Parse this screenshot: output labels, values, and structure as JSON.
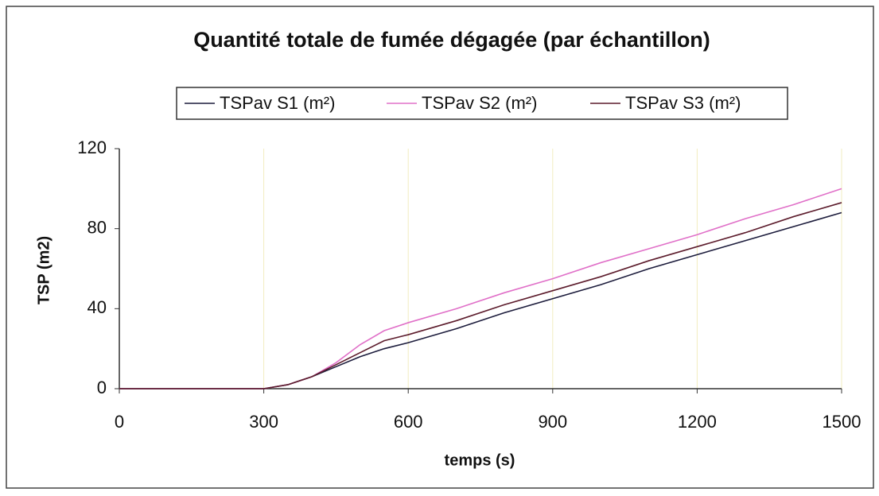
{
  "chart_data": {
    "type": "line",
    "title": "Quantité totale de fumée dégagée (par échantillon)",
    "x_label": "temps (s)",
    "y_label": "TSP (m2)",
    "x": [
      0,
      100,
      200,
      300,
      350,
      400,
      450,
      500,
      550,
      600,
      700,
      800,
      900,
      1000,
      1100,
      1200,
      1300,
      1400,
      1500
    ],
    "series": [
      {
        "name": "TSPav S1 (m²)",
        "color": "#1c1c3c",
        "values": [
          0,
          0,
          0,
          0,
          2,
          6,
          11,
          16,
          20,
          23,
          30,
          38,
          45,
          52,
          60,
          67,
          74,
          81,
          88
        ]
      },
      {
        "name": "TSPav S2 (m²)",
        "color": "#e070c8",
        "values": [
          0,
          0,
          0,
          0,
          2,
          6,
          13,
          22,
          29,
          33,
          40,
          48,
          55,
          63,
          70,
          77,
          85,
          92,
          100
        ]
      },
      {
        "name": "TSPav S3 (m²)",
        "color": "#5c1c2c",
        "values": [
          0,
          0,
          0,
          0,
          2,
          6,
          12,
          18,
          24,
          27,
          34,
          42,
          49,
          56,
          64,
          71,
          78,
          86,
          93
        ]
      }
    ],
    "xlim": [
      0,
      1500
    ],
    "xticks": [
      0,
      300,
      600,
      900,
      1200,
      1500
    ],
    "ylim": [
      0,
      120
    ],
    "yticks": [
      0,
      40,
      80,
      120
    ],
    "grid": true,
    "legend": "top"
  }
}
